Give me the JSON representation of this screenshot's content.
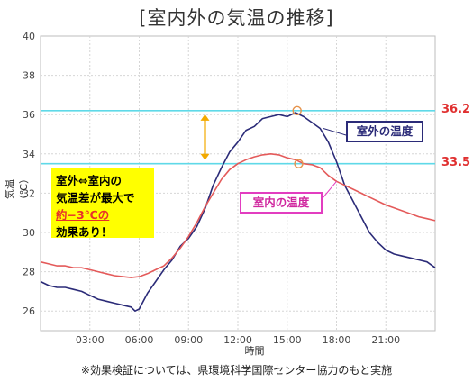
{
  "title": "[室内外の気温の推移]",
  "footnote": "※効果検証については、県環境科学国際センター協力のもと実施",
  "callout": {
    "line1": "室外⇔室内の",
    "line2": "気温差が最大で",
    "line3": "約−3℃の",
    "line4": "効果あり！"
  },
  "colors": {
    "outdoor": "#2b2b78",
    "indoor": "#e45a5a",
    "reference": "#5fd9e8",
    "arrow": "#f2a900",
    "callout_bg": "#ffff00",
    "ref_label": "#e03030"
  },
  "chart_data": {
    "type": "line",
    "xlabel": "時間",
    "ylabel": "気温（℃）",
    "ylim": [
      25,
      40
    ],
    "yticks": [
      "26",
      "28",
      "30",
      "32",
      "34",
      "36",
      "38",
      "40"
    ],
    "xlim": [
      0,
      24
    ],
    "xticks": [
      "03:00",
      "06:00",
      "09:00",
      "12:00",
      "15:00",
      "18:00",
      "21:00"
    ],
    "reference_lines": [
      {
        "value": 36.2,
        "label": "36.2"
      },
      {
        "value": 33.5,
        "label": "33.5"
      }
    ],
    "series": [
      {
        "name": "室外の温度",
        "x": [
          0,
          0.5,
          1,
          1.5,
          2,
          2.5,
          3,
          3.5,
          4,
          4.5,
          5,
          5.5,
          5.75,
          6,
          6.5,
          7,
          7.5,
          8,
          8.5,
          9,
          9.5,
          10,
          10.5,
          11,
          11.5,
          12,
          12.5,
          13,
          13.5,
          14,
          14.5,
          15,
          15.5,
          16,
          16.5,
          17,
          17.5,
          18,
          18.5,
          19,
          19.5,
          20,
          20.5,
          21,
          21.5,
          22,
          22.5,
          23,
          23.5,
          24
        ],
        "values": [
          27.5,
          27.3,
          27.2,
          27.2,
          27.1,
          27.0,
          26.8,
          26.6,
          26.5,
          26.4,
          26.3,
          26.2,
          26.0,
          26.1,
          26.9,
          27.5,
          28.1,
          28.6,
          29.3,
          29.7,
          30.3,
          31.2,
          32.4,
          33.3,
          34.1,
          34.6,
          35.2,
          35.4,
          35.8,
          35.9,
          36.0,
          35.9,
          36.1,
          35.9,
          35.6,
          35.3,
          34.6,
          33.6,
          32.4,
          31.6,
          30.8,
          30.0,
          29.5,
          29.1,
          28.9,
          28.8,
          28.7,
          28.6,
          28.5,
          28.2
        ]
      },
      {
        "name": "室内の温度",
        "x": [
          0,
          0.5,
          1,
          1.5,
          2,
          2.5,
          3,
          3.5,
          4,
          4.5,
          5,
          5.5,
          6,
          6.5,
          7,
          7.5,
          8,
          8.5,
          9,
          9.5,
          10,
          10.5,
          11,
          11.5,
          12,
          12.5,
          13,
          13.5,
          14,
          14.5,
          15,
          15.5,
          16,
          16.5,
          17,
          17.5,
          18,
          18.5,
          19,
          19.5,
          20,
          20.5,
          21,
          21.5,
          22,
          22.5,
          23,
          23.5,
          24
        ],
        "values": [
          28.5,
          28.4,
          28.3,
          28.3,
          28.2,
          28.2,
          28.1,
          28.0,
          27.9,
          27.8,
          27.75,
          27.7,
          27.75,
          27.9,
          28.1,
          28.3,
          28.7,
          29.2,
          29.8,
          30.5,
          31.3,
          32.0,
          32.7,
          33.2,
          33.5,
          33.7,
          33.85,
          33.95,
          34.0,
          33.95,
          33.8,
          33.7,
          33.5,
          33.45,
          33.3,
          32.9,
          32.6,
          32.4,
          32.2,
          32.0,
          31.8,
          31.6,
          31.4,
          31.25,
          31.1,
          30.95,
          30.8,
          30.7,
          30.6
        ]
      }
    ]
  }
}
